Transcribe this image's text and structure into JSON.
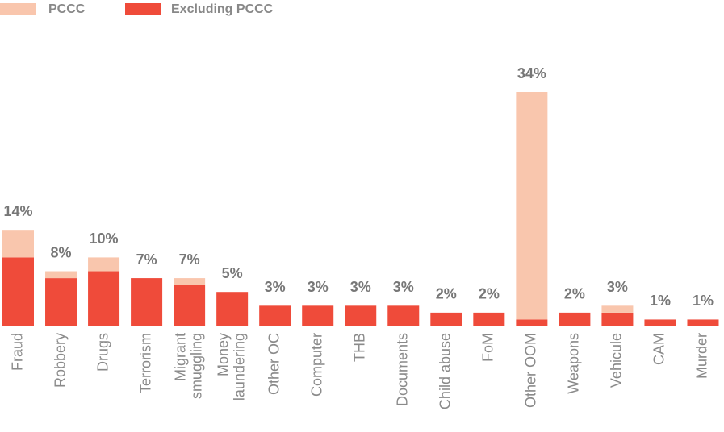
{
  "chart_data": {
    "type": "stacked_bar",
    "categories": [
      "Fraud",
      "Robbery",
      "Drugs",
      "Terrorism",
      "Migrant\nsmuggling",
      "Money\nlaundering",
      "Other OC",
      "Computer",
      "THB",
      "Documents",
      "Child abuse",
      "FoM",
      "Other OOM",
      "Weapons",
      "Vehicule",
      "CAM",
      "Murder"
    ],
    "series": [
      {
        "name": "Excluding PCCC",
        "color": "#ef4b3a",
        "values": [
          10,
          7,
          8,
          7,
          6,
          5,
          3,
          3,
          3,
          3,
          2,
          2,
          1,
          2,
          2,
          1,
          1
        ]
      },
      {
        "name": "PCCC",
        "color": "#f9c6ad",
        "values": [
          4,
          1,
          2,
          0,
          1,
          0,
          0,
          0,
          0,
          0,
          0,
          0,
          33,
          0,
          1,
          0,
          0
        ]
      }
    ],
    "total_labels": [
      "14%",
      "8%",
      "10%",
      "7%",
      "7%",
      "5%",
      "3%",
      "3%",
      "3%",
      "3%",
      "2%",
      "2%",
      "34%",
      "2%",
      "3%",
      "1%",
      "1%"
    ],
    "ylim": [
      0,
      34
    ]
  }
}
